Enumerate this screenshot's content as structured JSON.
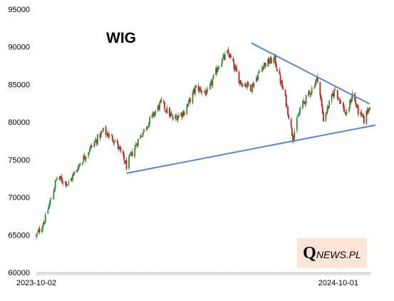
{
  "chart_data": {
    "type": "candlestick",
    "title": "WIG",
    "xlabel": "",
    "ylabel": "",
    "ylim": [
      60000,
      95000
    ],
    "y_ticks": [
      60000,
      65000,
      70000,
      75000,
      80000,
      85000,
      90000,
      95000
    ],
    "x_tick_labels": [
      "2023-10-02",
      "2024-10-01"
    ],
    "x_range": [
      "2023-10-02",
      "2024-11-08"
    ],
    "grid": false,
    "colors": {
      "up": "#2e8b3a",
      "down": "#d0191b",
      "trendline": "#5b87c5"
    },
    "close_path": [
      [
        "2023-10-02",
        64800
      ],
      [
        "2023-10-13",
        67200
      ],
      [
        "2023-10-27",
        72600
      ],
      [
        "2023-11-10",
        71800
      ],
      [
        "2023-11-24",
        74600
      ],
      [
        "2023-12-08",
        76800
      ],
      [
        "2023-12-22",
        78800
      ],
      [
        "2024-01-05",
        77600
      ],
      [
        "2024-01-19",
        74200
      ],
      [
        "2024-02-02",
        77600
      ],
      [
        "2024-02-16",
        80200
      ],
      [
        "2024-03-01",
        82600
      ],
      [
        "2024-03-15",
        80400
      ],
      [
        "2024-03-29",
        81400
      ],
      [
        "2024-04-12",
        84600
      ],
      [
        "2024-04-26",
        83800
      ],
      [
        "2024-05-10",
        87800
      ],
      [
        "2024-05-21",
        89200
      ],
      [
        "2024-06-04",
        85400
      ],
      [
        "2024-06-18",
        84600
      ],
      [
        "2024-07-02",
        87600
      ],
      [
        "2024-07-16",
        88400
      ],
      [
        "2024-07-30",
        82600
      ],
      [
        "2024-08-07",
        78000
      ],
      [
        "2024-08-16",
        81800
      ],
      [
        "2024-08-30",
        84400
      ],
      [
        "2024-09-06",
        85900
      ],
      [
        "2024-09-13",
        80400
      ],
      [
        "2024-09-27",
        84400
      ],
      [
        "2024-10-11",
        80800
      ],
      [
        "2024-10-18",
        83800
      ],
      [
        "2024-10-25",
        81400
      ],
      [
        "2024-11-01",
        80200
      ],
      [
        "2024-11-08",
        82400
      ]
    ],
    "trendlines": [
      {
        "from": [
          "2024-01-19",
          73200
        ],
        "to": [
          "2024-11-15",
          79600
        ]
      },
      {
        "from": [
          "2024-06-18",
          90500
        ],
        "to": [
          "2024-11-08",
          82400
        ]
      }
    ]
  },
  "logo": {
    "q": "Q",
    "rest": "NEWS.PL"
  }
}
